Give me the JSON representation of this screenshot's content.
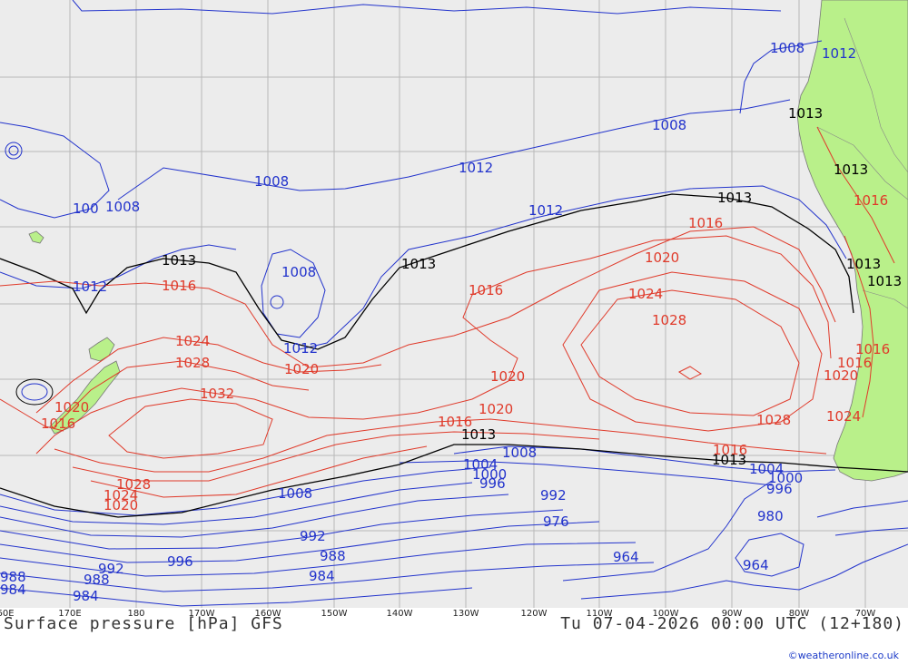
{
  "footer": {
    "title": "Surface pressure [hPa] GFS",
    "datetime": "Tu 07-04-2026 00:00 UTC (12+180)",
    "copyright": "©weatheronline.co.uk"
  },
  "longitude_labels": [
    "60E",
    "170E",
    "180",
    "170W",
    "160W",
    "150W",
    "140W",
    "130W",
    "120W",
    "110W",
    "100W",
    "90W",
    "80W",
    "70W"
  ],
  "isobar_labels": {
    "blue": [
      "1008",
      "1012",
      "1008",
      "100",
      "1008",
      "1008",
      "1012",
      "1008",
      "1012",
      "1012",
      "1012",
      "1008",
      "1004",
      "1000",
      "996",
      "992",
      "988",
      "984",
      "992",
      "996",
      "988",
      "984",
      "964",
      "964",
      "1008",
      "1004",
      "1000",
      "996",
      "992",
      "988",
      "984",
      "980",
      "976"
    ],
    "black": [
      "1013",
      "1013",
      "1013",
      "1013",
      "1013",
      "1013",
      "1013",
      "1013",
      "1013"
    ],
    "red": [
      "1016",
      "1024",
      "1028",
      "1032",
      "1020",
      "1016",
      "1020",
      "1016",
      "1020",
      "1024",
      "1028",
      "1016",
      "1020",
      "1016",
      "1020",
      "1028",
      "1024",
      "1020",
      "1016",
      "1028",
      "1024",
      "1020",
      "1016",
      "1016",
      "1016"
    ]
  },
  "colors": {
    "ocean": "#ececec",
    "land": "#b9f08a",
    "isobar_low": "#2233cc",
    "isobar_std": "#000000",
    "isobar_high": "#e03a2a",
    "grid": "#b8b8b8"
  }
}
